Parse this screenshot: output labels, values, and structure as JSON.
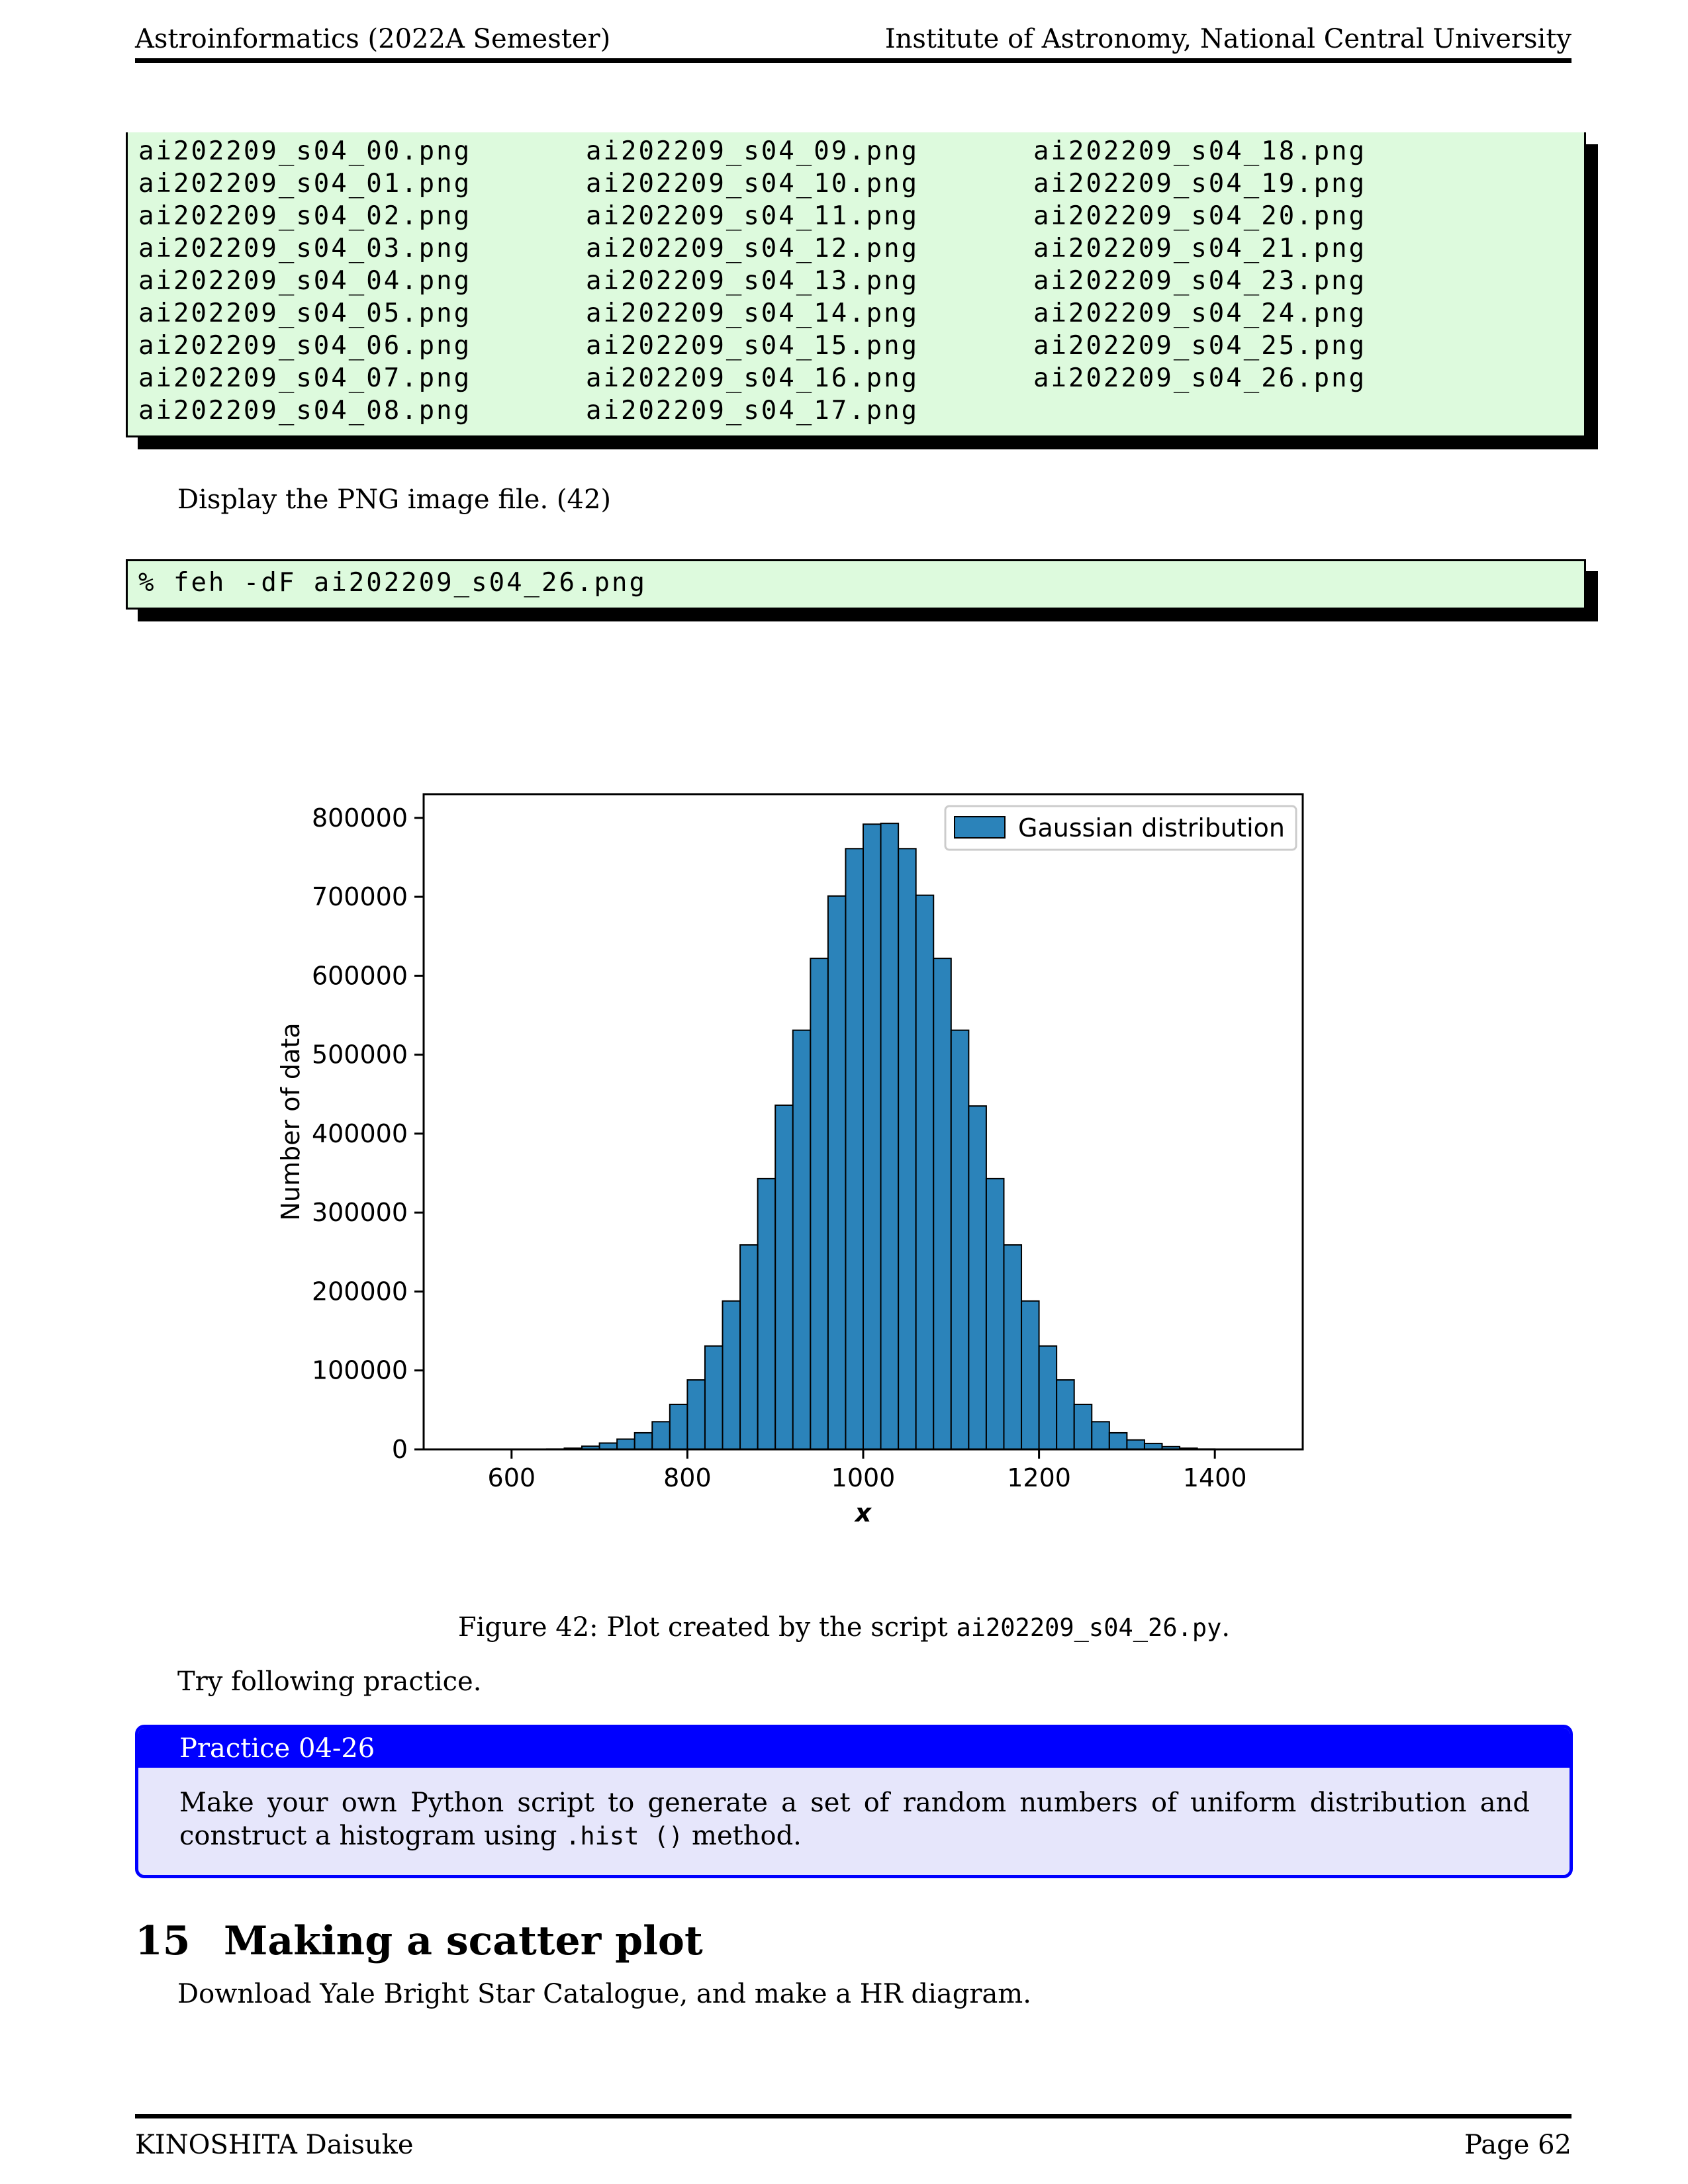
{
  "header": {
    "left": "Astroinformatics (2022A Semester)",
    "right": "Institute of Astronomy, National Central University"
  },
  "listing": {
    "rows": [
      [
        "ai202209_s04_00.png",
        "ai202209_s04_09.png",
        "ai202209_s04_18.png"
      ],
      [
        "ai202209_s04_01.png",
        "ai202209_s04_10.png",
        "ai202209_s04_19.png"
      ],
      [
        "ai202209_s04_02.png",
        "ai202209_s04_11.png",
        "ai202209_s04_20.png"
      ],
      [
        "ai202209_s04_03.png",
        "ai202209_s04_12.png",
        "ai202209_s04_21.png"
      ],
      [
        "ai202209_s04_04.png",
        "ai202209_s04_13.png",
        "ai202209_s04_23.png"
      ],
      [
        "ai202209_s04_05.png",
        "ai202209_s04_14.png",
        "ai202209_s04_24.png"
      ],
      [
        "ai202209_s04_06.png",
        "ai202209_s04_15.png",
        "ai202209_s04_25.png"
      ],
      [
        "ai202209_s04_07.png",
        "ai202209_s04_16.png",
        "ai202209_s04_26.png"
      ],
      [
        "ai202209_s04_08.png",
        "ai202209_s04_17.png",
        ""
      ]
    ]
  },
  "display_text": "Display the PNG image file. (42)",
  "command": "% feh -dF ai202209_s04_26.png",
  "chart_data": {
    "type": "bar",
    "xlabel": "x",
    "ylabel": "Number of data",
    "xlim": [
      500,
      1500
    ],
    "ylim": [
      0,
      830000
    ],
    "xticks": [
      600,
      800,
      1000,
      1200,
      1400
    ],
    "yticks": [
      0,
      100000,
      200000,
      300000,
      400000,
      500000,
      600000,
      700000,
      800000
    ],
    "bar_color": "#2b83ba",
    "legend": {
      "label": "Gaussian distribution",
      "position": "top-right"
    },
    "bin_start": 500,
    "bin_width": 20,
    "values": [
      0,
      0,
      0,
      0,
      0,
      0,
      0,
      500,
      1500,
      4000,
      8000,
      13000,
      21000,
      35000,
      57000,
      88000,
      131000,
      188000,
      259000,
      343000,
      436000,
      531000,
      622000,
      701000,
      761000,
      792000,
      793000,
      761000,
      702000,
      622000,
      531000,
      435000,
      343000,
      259000,
      188000,
      131000,
      88000,
      57000,
      35000,
      21000,
      12000,
      7500,
      3500,
      1500,
      500,
      0,
      0,
      0,
      0,
      0
    ]
  },
  "caption": {
    "prefix": "Figure 42: Plot created by the script",
    "code": "ai202209_s04_26.py",
    "suffix": "."
  },
  "try_text": "Try following practice.",
  "practice": {
    "title": "Practice 04-26",
    "body_before": "Make your own Python script to generate a set of random numbers of uniform distribution and construct a histogram using",
    "body_code": ".hist ()",
    "body_after": "method."
  },
  "section": {
    "number": "15",
    "title": "Making a scatter plot"
  },
  "section_text": "Download Yale Bright Star Catalogue, and make a HR diagram.",
  "footer": {
    "left": "KINOSHITA Daisuke",
    "right": "Page 62"
  },
  "colors": {
    "code_bg": "#ddfadd",
    "practice_blue": "#0000ff",
    "practice_bg": "#e6e6fb"
  }
}
